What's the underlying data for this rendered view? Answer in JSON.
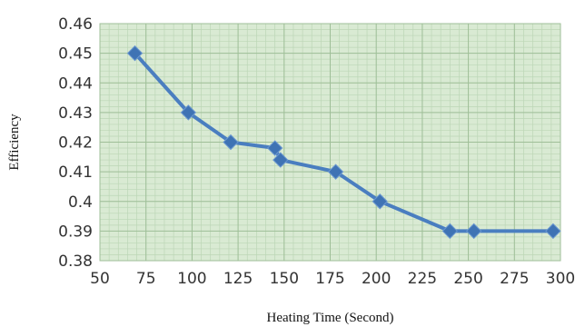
{
  "chart_data": {
    "type": "line",
    "xlabel": "Heating Time (Second)",
    "ylabel": "Efficiency",
    "xlim": [
      50,
      300
    ],
    "ylim": [
      0.38,
      0.46
    ],
    "x_ticks": [
      50,
      75,
      100,
      125,
      150,
      175,
      200,
      225,
      250,
      275,
      300
    ],
    "y_ticks": [
      "0.38",
      "0.39",
      "0.4",
      "0.41",
      "0.42",
      "0.43",
      "0.44",
      "0.45",
      "0.46"
    ],
    "grid": true,
    "legend": "none",
    "colors": {
      "plot_bg": "#d9ead3",
      "grid_major": "#9fbf98",
      "grid_minor": "#bcd6b6",
      "series": "#4a7ec0",
      "marker": "#3f73b4"
    },
    "series": [
      {
        "x": [
          69,
          98,
          121,
          145,
          148,
          178,
          202,
          240,
          253,
          296
        ],
        "y": [
          0.45,
          0.43,
          0.42,
          0.418,
          0.414,
          0.41,
          0.4,
          0.39,
          0.39,
          0.39
        ]
      }
    ]
  }
}
